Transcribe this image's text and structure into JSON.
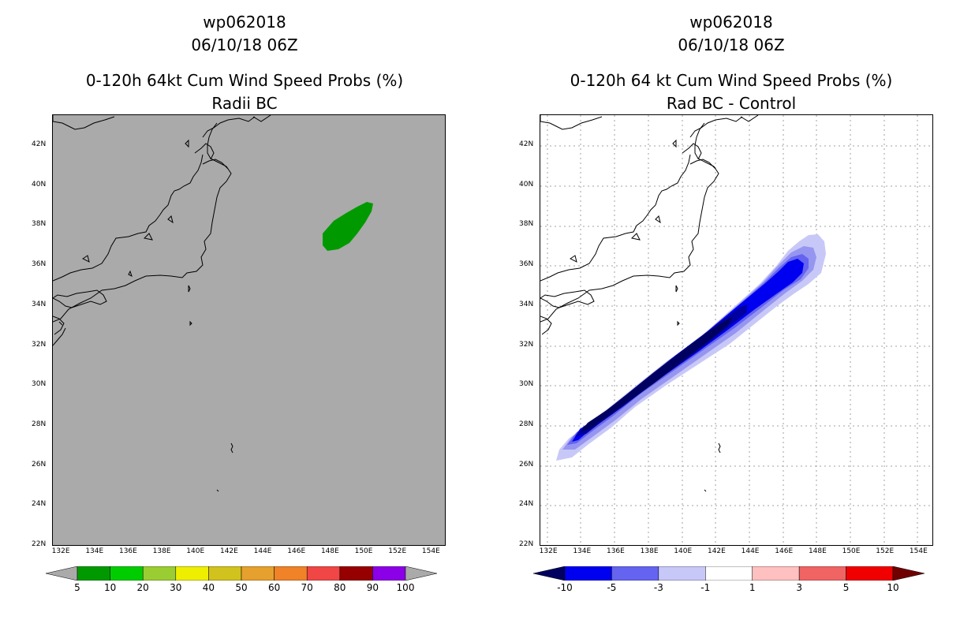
{
  "left_panel": {
    "title_line1": "wp062018",
    "title_line2": "06/10/18 06Z",
    "title_line3": "0-120h 64kt Cum Wind Speed Probs (%)",
    "subtitle": "Radii BC",
    "background_color": "#aaaaaa",
    "probability_area_color": "#009a00",
    "colorbar_labels": [
      "5",
      "10",
      "20",
      "30",
      "40",
      "50",
      "60",
      "70",
      "80",
      "90",
      "100"
    ],
    "colorbar_colors": [
      "#aaaaaa",
      "#009a00",
      "#00cd00",
      "#9acd32",
      "#eeee00",
      "#d2c21d",
      "#e6a02d",
      "#f08228",
      "#f04646",
      "#960000",
      "#8b00e6",
      "#aaaaaa"
    ]
  },
  "right_panel": {
    "title_line1": "wp062018",
    "title_line2": "06/10/18 06Z",
    "title_line3": "0-120h 64 kt Cum Wind Speed Probs (%)",
    "subtitle": "Rad BC - Control",
    "colorbar_labels": [
      "-10",
      "-5",
      "-3",
      "-1",
      "1",
      "3",
      "5",
      "10"
    ],
    "colorbar_colors": [
      "#000060",
      "#0000f0",
      "#6464f0",
      "#c8c8f8",
      "#ffffff",
      "#ffc0c0",
      "#f06464",
      "#f00000",
      "#700000"
    ],
    "difference_level_colors": [
      "#c8c8f8",
      "#9696f0",
      "#6464f0",
      "#0000f0",
      "#0000a0",
      "#000060"
    ]
  },
  "axes": {
    "lat_labels": [
      "42N",
      "40N",
      "38N",
      "36N",
      "34N",
      "32N",
      "30N",
      "28N",
      "26N",
      "24N",
      "22N"
    ],
    "lon_labels": [
      "132E",
      "134E",
      "136E",
      "138E",
      "140E",
      "142E",
      "144E",
      "146E",
      "148E",
      "150E",
      "152E",
      "154E"
    ],
    "lat_values": [
      42,
      40,
      38,
      36,
      34,
      32,
      30,
      28,
      26,
      24,
      22
    ],
    "lon_values": [
      132,
      134,
      136,
      138,
      140,
      142,
      144,
      146,
      148,
      150,
      152,
      154
    ],
    "lat_range": [
      22,
      43.5
    ],
    "lon_range": [
      131.5,
      154.8
    ]
  }
}
